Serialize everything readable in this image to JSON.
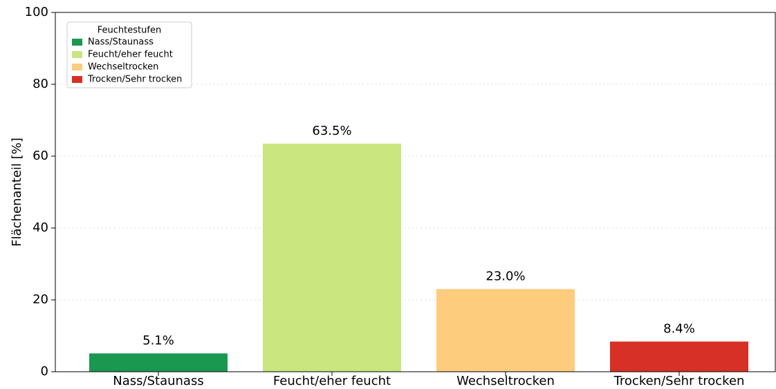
{
  "chart_data": {
    "type": "bar",
    "ylabel": "Flächenanteil [%]",
    "categories": [
      "Nass/Staunass",
      "Feucht/eher feucht",
      "Wechseltrocken",
      "Trocken/Sehr trocken"
    ],
    "values": [
      5.1,
      63.5,
      23.0,
      8.4
    ],
    "value_labels": [
      "5.1%",
      "63.5%",
      "23.0%",
      "8.4%"
    ],
    "colors": [
      "#1a9850",
      "#c9e67f",
      "#fdcc7d",
      "#d73027"
    ],
    "legend_title": "Feuchtestufen",
    "legend": "upper left",
    "ylim": [
      0,
      100
    ],
    "yticks": [
      0,
      20,
      40,
      60,
      80,
      100
    ],
    "grid": true
  }
}
